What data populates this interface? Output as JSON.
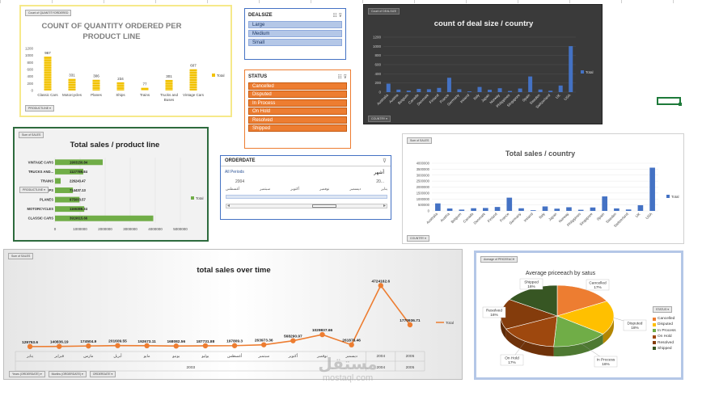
{
  "quantity_chart": {
    "badge": "Count of QUANTITYORDERED",
    "filter_label": "PRODUCTLINE",
    "legend": "Total",
    "chart_data": {
      "type": "bar",
      "title": "COUNT OF QUANTITY ORDERED PER PRODUCT LINE",
      "categories": [
        "Classic Cars",
        "Motorcycles",
        "Planes",
        "Ships",
        "Trains",
        "Trucks and Buses",
        "Vintage Cars"
      ],
      "values": [
        967,
        331,
        306,
        234,
        77,
        301,
        607
      ],
      "data_labels": [
        "967",
        "331",
        "306",
        "234",
        "77",
        "301",
        "607"
      ],
      "yticks": [
        "1200",
        "1000",
        "800",
        "600",
        "400",
        "200",
        "0"
      ],
      "ylim": [
        0,
        1200
      ],
      "color": "#f2c200"
    }
  },
  "dealsize_slicer": {
    "title": "DEALSIZE",
    "items": [
      "Large",
      "Medium",
      "Small"
    ]
  },
  "status_slicer": {
    "title": "STATUS",
    "items": [
      "Cancelled",
      "Disputed",
      "In Process",
      "On Hold",
      "Resolved",
      "Shipped"
    ]
  },
  "dealsize_country_chart": {
    "badge": "Count of DEALSIZE",
    "filter_label": "COUNTRY",
    "legend": "Total",
    "chart_data": {
      "type": "bar",
      "title": "count of deal size / country",
      "categories": [
        "Australia",
        "Austria",
        "Belgium",
        "Canada",
        "Denmark",
        "Finland",
        "France",
        "Germany",
        "Ireland",
        "Italy",
        "Japan",
        "Norway",
        "Philippines",
        "Singapore",
        "Spain",
        "Sweden",
        "Switzerland",
        "UK",
        "USA"
      ],
      "values": [
        185,
        55,
        33,
        70,
        63,
        92,
        314,
        62,
        16,
        113,
        52,
        85,
        26,
        79,
        342,
        57,
        31,
        144,
        1004
      ],
      "yticks": [
        "1200",
        "1000",
        "800",
        "600",
        "400",
        "200",
        "0"
      ],
      "ylim": [
        0,
        1200
      ],
      "color": "#4472c4"
    }
  },
  "sales_productline_chart": {
    "badge": "Sum of SALES",
    "filter_label": "PRODUCTLINE",
    "legend": "Total",
    "chart_data": {
      "type": "bar",
      "title": "Total sales / product line",
      "categories": [
        "VINTAGE CARS",
        "TRUCKS AND...",
        "TRAINS",
        "SHIPS",
        "PLANES",
        "MOTORCYCLES",
        "CLASSIC CARS"
      ],
      "values": [
        1903150.84,
        1127789.84,
        226243.47,
        714437.13,
        975003.57,
        1166388.34,
        3919615.66
      ],
      "data_labels": [
        "1903150.84",
        "1127789.84",
        "226243.47",
        "714437.13",
        "975003.57",
        "1166388.34",
        "3919615.66"
      ],
      "xticks": [
        "0",
        "1000000",
        "2000000",
        "3000000",
        "4000000",
        "5000000"
      ],
      "xlim": [
        0,
        5000000
      ],
      "color": "#70ad47"
    }
  },
  "orderdate_timeline": {
    "title": "ORDERDATE",
    "all_periods": "All Periods",
    "unit": "أشهر",
    "year_left": "2004",
    "year_right": "20...",
    "months": [
      "أغسطس",
      "سبتمبر",
      "أكتوبر",
      "نوفمبر",
      "ديسمبر",
      "يناير"
    ]
  },
  "sales_country_chart": {
    "badge": "Sum of SALES",
    "filter_label": "COUNTRY",
    "legend": "Total",
    "chart_data": {
      "type": "bar",
      "title": "Total sales / country",
      "categories": [
        "Australia",
        "Austria",
        "Belgium",
        "Canada",
        "Denmark",
        "Finland",
        "France",
        "Germany",
        "Ireland",
        "Italy",
        "Japan",
        "Norway",
        "Philippines",
        "Singapore",
        "Spain",
        "Sweden",
        "Switzerland",
        "UK",
        "USA"
      ],
      "values": [
        630623,
        202063,
        108413,
        224079,
        245637,
        329582,
        1110917,
        220472,
        57757,
        374675,
        188168,
        307464,
        94016,
        288488,
        1215687,
        210014,
        117714,
        478880,
        3627983
      ],
      "yticks": [
        "4000000",
        "3500000",
        "3000000",
        "2500000",
        "2000000",
        "1500000",
        "1000000",
        "500000",
        "0"
      ],
      "ylim": [
        0,
        4000000
      ],
      "color": "#4472c4"
    }
  },
  "sales_time_chart": {
    "badge": "Sum of SALES",
    "filters": [
      "Years (ORDERDATE)",
      "Months (ORDERDATE)",
      "ORDERDATE"
    ],
    "legend": "Total",
    "chart_data": {
      "type": "line",
      "title": "total sales over time",
      "x": [
        "يناير",
        "فبراير",
        "مارس",
        "أبريل",
        "مايو",
        "يونيو",
        "يوليو",
        "أغسطس",
        "سبتمبر",
        "أكتوبر",
        "نوفمبر",
        "ديسمبر",
        "2004",
        "2005"
      ],
      "values": [
        129753.6,
        140836.19,
        174504.9,
        201609.55,
        192673.11,
        168082.56,
        187731.88,
        197809.3,
        263973.36,
        568290.97,
        1029837.66,
        261876.46,
        4724162.6,
        1770936.71
      ],
      "data_labels": [
        "129753.6",
        "140836.19",
        "174504.9",
        "201609.55",
        "192673.11",
        "168082.56",
        "187731.88",
        "197809.3",
        "263973.36",
        "568290.97",
        "1029837.66",
        "261876.46",
        "4724162.6",
        "1770936.71"
      ],
      "year_groups": [
        "2003",
        "2004",
        "2005"
      ],
      "color": "#ed7d31"
    }
  },
  "pie_chart": {
    "badge": "Average of PRICEEACH",
    "legend_title": "STATUS",
    "chart_data": {
      "type": "pie",
      "title": "Average priceeach by satus",
      "categories": [
        "Cancelled",
        "Disputed",
        "In Process",
        "On Hold",
        "Resolved",
        "Shipped"
      ],
      "values": [
        17,
        18,
        16,
        17,
        16,
        16
      ],
      "data_labels": [
        "17%",
        "18%",
        "16%",
        "17%",
        "16%",
        "16%"
      ],
      "colors": [
        "#ed7d31",
        "#ffc000",
        "#70ad47",
        "#9e480e",
        "#843c0c",
        "#375623"
      ]
    }
  },
  "watermark": {
    "arabic": "مستقل",
    "latin": "mostaql.com"
  }
}
